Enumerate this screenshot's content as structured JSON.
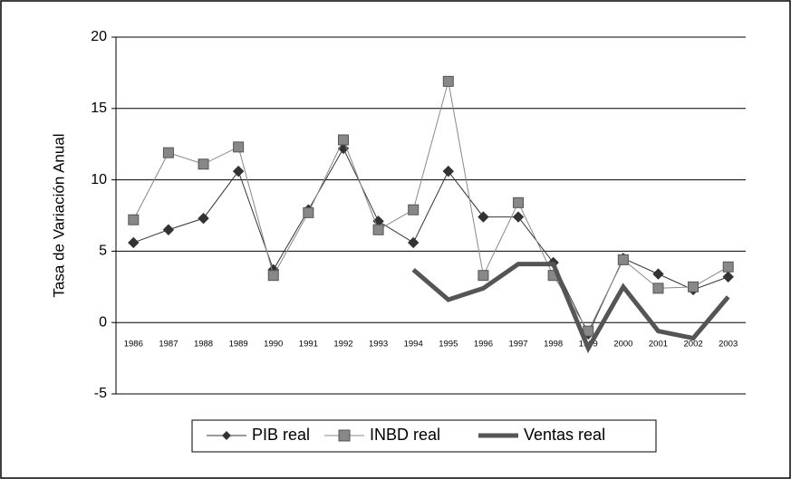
{
  "chart_data": {
    "type": "line",
    "y_label": "Tasa de Variación Anual",
    "categories": [
      "1986",
      "1987",
      "1988",
      "1989",
      "1990",
      "1991",
      "1992",
      "1993",
      "1994",
      "1995",
      "1996",
      "1997",
      "1998",
      "1999",
      "2000",
      "2001",
      "2002",
      "2003"
    ],
    "series": [
      {
        "name": "PIB real",
        "color": "#333333",
        "marker": "diamond",
        "values": [
          5.6,
          6.5,
          7.3,
          10.6,
          3.7,
          7.9,
          12.2,
          7.1,
          5.6,
          10.6,
          7.4,
          7.4,
          4.2,
          -0.8,
          4.5,
          3.4,
          2.3,
          3.2
        ]
      },
      {
        "name": "INBD real",
        "color": "#888888",
        "marker": "square",
        "values": [
          7.2,
          11.9,
          11.1,
          12.3,
          3.3,
          7.7,
          12.8,
          6.5,
          7.9,
          16.9,
          3.3,
          8.4,
          3.3,
          -0.6,
          4.4,
          2.4,
          2.5,
          3.9
        ]
      },
      {
        "name": "Ventas real",
        "color": "#555555",
        "marker": "none",
        "values": [
          null,
          null,
          null,
          null,
          null,
          null,
          null,
          null,
          3.7,
          1.6,
          2.4,
          4.1,
          4.1,
          -1.8,
          2.5,
          -0.6,
          -1.1,
          1.8
        ]
      }
    ],
    "ylim": [
      -5,
      20
    ],
    "yticks": [
      -5,
      0,
      5,
      10,
      15,
      20
    ],
    "grid": true,
    "legend": "bottom"
  }
}
